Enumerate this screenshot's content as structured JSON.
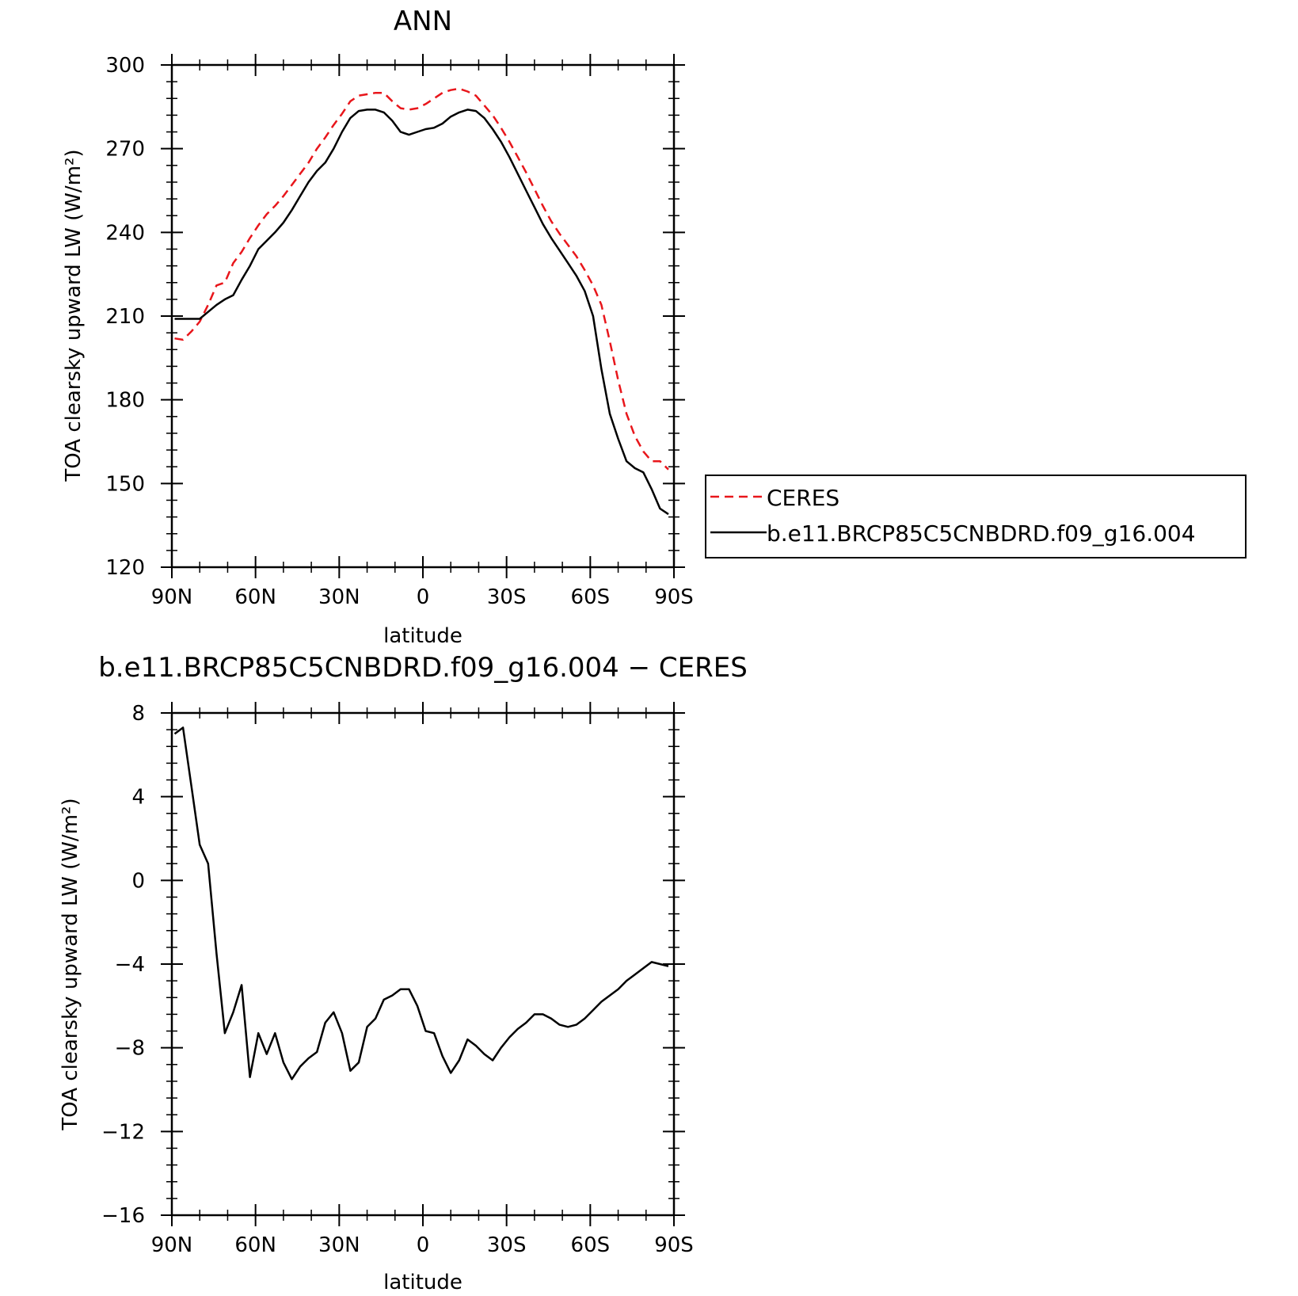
{
  "chart_data": [
    {
      "type": "line",
      "title": "ANN",
      "xlabel": "latitude",
      "ylabel": "TOA clearsky upward LW (W/m²)",
      "xlim": [
        90,
        -90
      ],
      "ylim": [
        120,
        300
      ],
      "xticks": [
        90,
        60,
        30,
        0,
        -30,
        -60,
        -90
      ],
      "xtick_labels": [
        "90N",
        "60N",
        "30N",
        "0",
        "30S",
        "60S",
        "90S"
      ],
      "yticks": [
        120,
        150,
        180,
        210,
        240,
        270,
        300
      ],
      "ytick_labels": [
        "120",
        "150",
        "180",
        "210",
        "240",
        "270",
        "300"
      ],
      "legend": {
        "placement": "right"
      },
      "series": [
        {
          "name": "CERES",
          "color": "#e8161b",
          "dash": "dashed",
          "x": [
            89,
            86,
            83,
            80,
            77,
            74,
            71,
            68,
            65,
            62,
            59,
            56,
            53,
            50,
            47,
            44,
            41,
            38,
            35,
            32,
            29,
            26,
            23,
            20,
            17,
            14,
            11,
            8,
            5,
            2,
            -1,
            -4,
            -7,
            -10,
            -13,
            -16,
            -19,
            -22,
            -25,
            -28,
            -31,
            -34,
            -37,
            -40,
            -43,
            -46,
            -49,
            -52,
            -55,
            -58,
            -61,
            -64,
            -67,
            -70,
            -73,
            -76,
            -79,
            -82,
            -85,
            -88
          ],
          "y": [
            202,
            201.5,
            204.5,
            208,
            214,
            221,
            222,
            229,
            233,
            238,
            242.5,
            246.5,
            249.5,
            253,
            257,
            261,
            265,
            270,
            274,
            278.5,
            282.5,
            287,
            289,
            289.5,
            290,
            290,
            287,
            284.5,
            284,
            284.5,
            286,
            288,
            290,
            291,
            291.5,
            290.5,
            289,
            285.5,
            282,
            277.5,
            272.5,
            267,
            261.5,
            255.5,
            249.5,
            244,
            239.5,
            235.5,
            231.5,
            226.5,
            221,
            214,
            201,
            187,
            175,
            167,
            161.5,
            158,
            158,
            155
          ]
        },
        {
          "name": "b.e11.BRCP85C5CNBDRD.f09_g16.004",
          "color": "#000000",
          "dash": "solid",
          "x": [
            89,
            86,
            83,
            80,
            77,
            74,
            71,
            68,
            65,
            62,
            59,
            56,
            53,
            50,
            47,
            44,
            41,
            38,
            35,
            32,
            29,
            26,
            23,
            20,
            17,
            14,
            11,
            8,
            5,
            2,
            -1,
            -4,
            -7,
            -10,
            -13,
            -16,
            -19,
            -22,
            -25,
            -28,
            -31,
            -34,
            -37,
            -40,
            -43,
            -46,
            -49,
            -52,
            -55,
            -58,
            -61,
            -64,
            -67,
            -70,
            -73,
            -76,
            -79,
            -82,
            -85,
            -88
          ],
          "y": [
            209,
            209,
            209,
            209,
            211.5,
            214,
            216,
            217.5,
            223,
            228,
            234,
            237,
            240,
            243.5,
            248,
            253,
            258,
            262,
            265,
            270,
            276,
            281,
            283.5,
            284,
            284,
            283,
            280,
            276,
            275,
            276,
            277,
            277.5,
            279,
            281.5,
            283,
            284,
            283.5,
            281,
            277,
            272.5,
            267,
            261,
            255,
            249,
            243,
            238,
            233.5,
            229,
            224.5,
            219,
            210,
            191,
            175,
            166,
            158,
            155.5,
            154,
            148,
            141,
            139
          ]
        }
      ]
    },
    {
      "type": "line",
      "title": "b.e11.BRCP85C5CNBDRD.f09_g16.004 − CERES",
      "xlabel": "latitude",
      "ylabel": "TOA clearsky upward LW (W/m²)",
      "xlim": [
        90,
        -90
      ],
      "ylim": [
        -16,
        8
      ],
      "xticks": [
        90,
        60,
        30,
        0,
        -30,
        -60,
        -90
      ],
      "xtick_labels": [
        "90N",
        "60N",
        "30N",
        "0",
        "30S",
        "60S",
        "90S"
      ],
      "yticks": [
        -16,
        -12,
        -8,
        -4,
        0,
        4,
        8
      ],
      "ytick_labels": [
        "−16",
        "−12",
        "−8",
        "−4",
        "0",
        "4",
        "8"
      ],
      "series": [
        {
          "color": "#000000",
          "dash": "solid",
          "x": [
            89,
            86,
            83,
            80,
            77,
            74,
            71,
            68,
            65,
            62,
            59,
            56,
            53,
            50,
            47,
            44,
            41,
            38,
            35,
            32,
            29,
            26,
            23,
            20,
            17,
            14,
            11,
            8,
            5,
            2,
            -1,
            -4,
            -7,
            -10,
            -13,
            -16,
            -19,
            -22,
            -25,
            -28,
            -31,
            -34,
            -37,
            -40,
            -43,
            -46,
            -49,
            -52,
            -55,
            -58,
            -61,
            -64,
            -67,
            -70,
            -73,
            -76,
            -79,
            -82,
            -85,
            -88
          ],
          "y": [
            7,
            7.3,
            4.5,
            1.7,
            0.8,
            -3.5,
            -7.3,
            -6.3,
            -5,
            -9.4,
            -7.3,
            -8.3,
            -7.3,
            -8.7,
            -9.5,
            -8.9,
            -8.5,
            -8.2,
            -6.8,
            -6.3,
            -7.3,
            -9.1,
            -8.7,
            -7,
            -6.6,
            -5.7,
            -5.5,
            -5.2,
            -5.2,
            -6,
            -7.2,
            -7.3,
            -8.4,
            -9.2,
            -8.6,
            -7.6,
            -7.9,
            -8.3,
            -8.6,
            -8,
            -7.5,
            -7.1,
            -6.8,
            -6.4,
            -6.4,
            -6.6,
            -6.9,
            -7,
            -6.9,
            -6.6,
            -6.2,
            -5.8,
            -5.5,
            -5.2,
            -4.8,
            -4.5,
            -4.2,
            -3.9,
            -4,
            -4.1
          ]
        }
      ]
    }
  ],
  "legend_entries": [
    "CERES",
    "b.e11.BRCP85C5CNBDRD.f09_g16.004"
  ]
}
